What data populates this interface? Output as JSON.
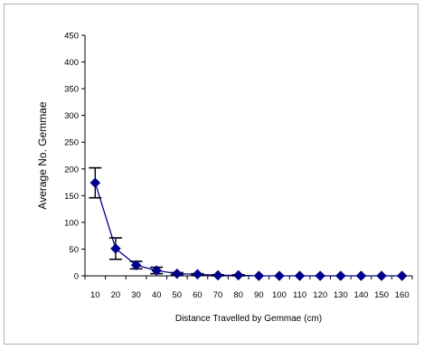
{
  "chart_data": {
    "type": "line",
    "title": "",
    "xlabel": "Distance Travelled by Gemmae (cm)",
    "ylabel": "Average No. Gemmae",
    "x": [
      10,
      20,
      30,
      40,
      50,
      60,
      70,
      80,
      90,
      100,
      110,
      120,
      130,
      140,
      150,
      160
    ],
    "series": [
      {
        "values": [
          174,
          51,
          20,
          10,
          4,
          3,
          1,
          1,
          0,
          0,
          0,
          0,
          0,
          0,
          0,
          0
        ],
        "error": [
          28,
          20,
          7,
          6,
          2,
          1,
          1,
          1,
          0,
          0,
          0,
          0,
          0,
          0,
          0,
          0
        ],
        "color": "#00008b",
        "marker": "diamond"
      }
    ],
    "ylim": [
      0,
      450
    ],
    "yticks": [
      0,
      50,
      100,
      150,
      200,
      250,
      300,
      350,
      400,
      450
    ],
    "grid": false,
    "legend": "none"
  }
}
